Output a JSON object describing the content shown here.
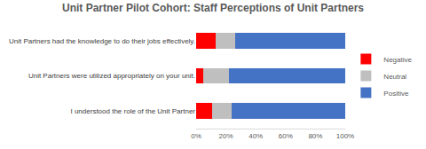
{
  "chart_data": {
    "type": "bar",
    "title": "Unit Partner Pilot Cohort: Staff Perceptions of Unit Partners",
    "orientation": "horizontal",
    "stacked": true,
    "categories": [
      "Unit Partners had the knowledge to do their jobs effectively.",
      "Unit Partners were utilized appropriately on your unit.",
      "I understood the role of the Unit Partner"
    ],
    "series": [
      {
        "name": "Negative",
        "color": "#ff0000",
        "values": [
          13,
          5,
          11
        ]
      },
      {
        "name": "Neutral",
        "color": "#bfbfbf",
        "values": [
          13,
          17,
          13
        ]
      },
      {
        "name": "Positive",
        "color": "#4472c4",
        "values": [
          74,
          78,
          76
        ]
      }
    ],
    "xlim": [
      0,
      100
    ],
    "xticks": [
      {
        "value": 0,
        "label": "0%"
      },
      {
        "value": 20,
        "label": "20%"
      },
      {
        "value": 40,
        "label": "40%"
      },
      {
        "value": 60,
        "label": "60%"
      },
      {
        "value": 80,
        "label": "80%"
      },
      {
        "value": 100,
        "label": "100%"
      }
    ],
    "grid": false,
    "legend": "right"
  }
}
